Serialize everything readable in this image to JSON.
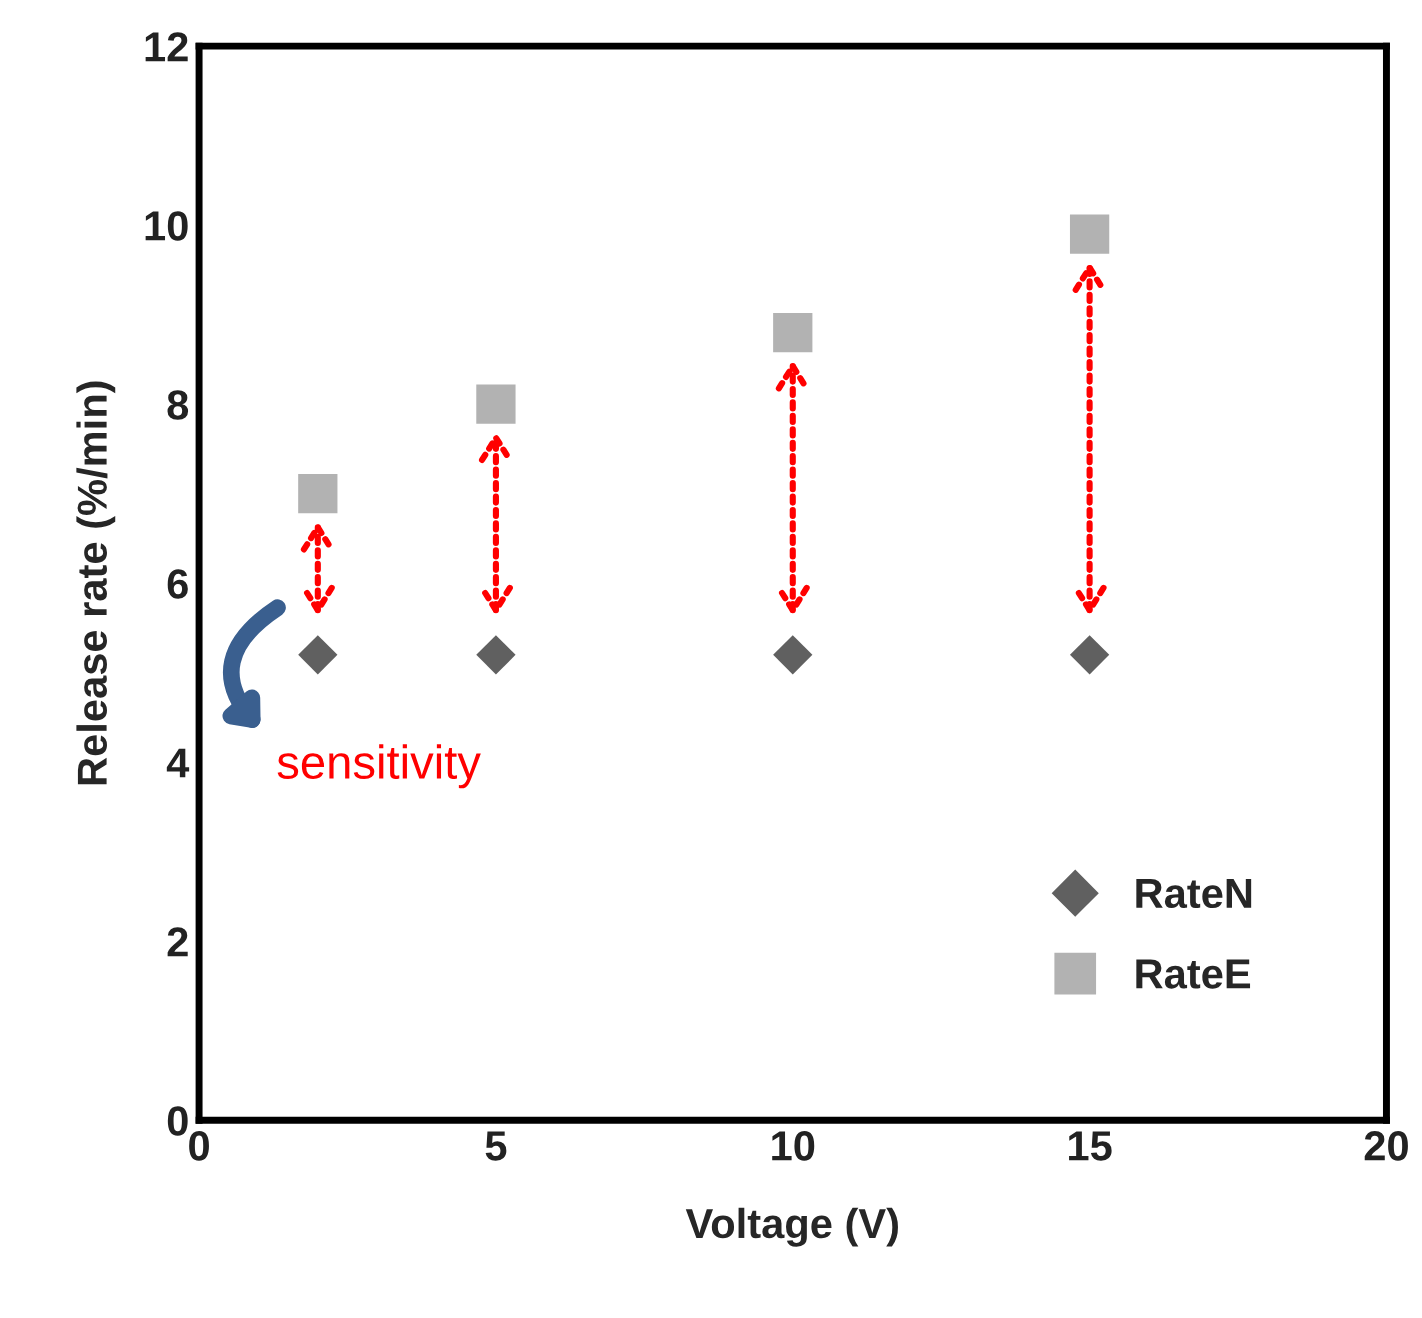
{
  "chart_data": {
    "type": "scatter",
    "xlabel": "Voltage (V)",
    "ylabel": "Release rate (%/min)",
    "x": [
      2,
      5,
      10,
      15
    ],
    "series": [
      {
        "name": "RateN",
        "color": "#606060",
        "marker": "diamond",
        "values": [
          5.2,
          5.2,
          5.2,
          5.2
        ]
      },
      {
        "name": "RateE",
        "color": "#b2b2b2",
        "marker": "square",
        "values": [
          7.0,
          8.0,
          8.8,
          9.9
        ]
      }
    ],
    "xlim": [
      0,
      20
    ],
    "xticks": [
      0,
      5,
      10,
      15,
      20
    ],
    "ylim": [
      0,
      12
    ],
    "yticks": [
      0,
      2,
      4,
      6,
      8,
      10,
      12
    ],
    "grid": false,
    "legend": "bottom right",
    "annotations": [
      "sensitivity"
    ]
  }
}
